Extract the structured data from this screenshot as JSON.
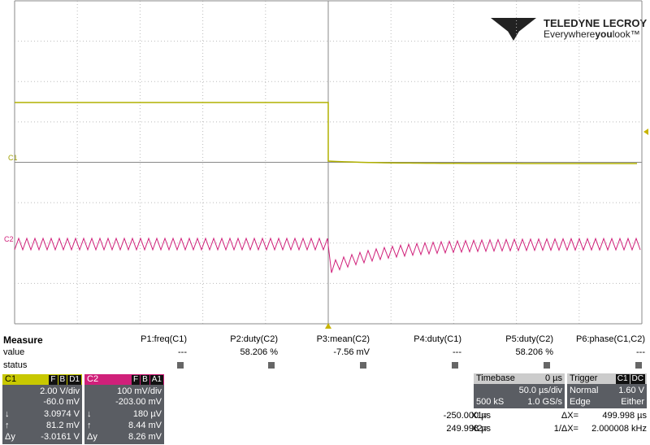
{
  "logo": {
    "brand": "TELEDYNE LECROY",
    "tag1": "Everywhere",
    "tag2": "you",
    "tag3": "look™"
  },
  "markers": {
    "c1": "C1",
    "c2": "C2"
  },
  "measure": {
    "title": "Measure",
    "row_value": "value",
    "row_status": "status",
    "params": [
      {
        "name": "P1:freq(C1)",
        "value": "---"
      },
      {
        "name": "P2:duty(C2)",
        "value": "58.206 %"
      },
      {
        "name": "P3:mean(C2)",
        "value": "-7.56 mV"
      },
      {
        "name": "P4:duty(C1)",
        "value": "---"
      },
      {
        "name": "P5:duty(C2)",
        "value": "58.206 %"
      },
      {
        "name": "P6:phase(C1,C2)",
        "value": "---"
      }
    ]
  },
  "c1": {
    "label": "C1",
    "flags": [
      "F",
      "B",
      "D1"
    ],
    "vdiv": "2.00 V/div",
    "offset": "-60.0 mV",
    "rows": [
      [
        "↓",
        "3.0974 V"
      ],
      [
        "↑",
        "81.2 mV"
      ],
      [
        "Δy",
        "-3.0161 V"
      ]
    ]
  },
  "c2": {
    "label": "C2",
    "flags": [
      "F",
      "B",
      "A1"
    ],
    "vdiv": "100 mV/div",
    "offset": "-203.00 mV",
    "rows": [
      [
        "↓",
        "180 µV"
      ],
      [
        "↑",
        "8.44 mV"
      ],
      [
        "Δy",
        "8.26 mV"
      ]
    ]
  },
  "timebase": {
    "title": "Timebase",
    "delay": "0 µs",
    "tdiv": "50.0 µs/div",
    "samples": "500 kS",
    "rate": "1.0 GS/s"
  },
  "trigger": {
    "title": "Trigger",
    "source": "C1",
    "coupling": "DC",
    "mode": "Normal",
    "level": "1.60 V",
    "type": "Edge",
    "slope": "Either"
  },
  "cursors": {
    "x1_label": "X1=",
    "x1": "-250.000 µs",
    "dx_label": "ΔX=",
    "dx": "499.998 µs",
    "x2_label": "X2=",
    "x2": "249.998 µs",
    "inv_label": "1/ΔX=",
    "inv": "2.000008 kHz"
  }
}
